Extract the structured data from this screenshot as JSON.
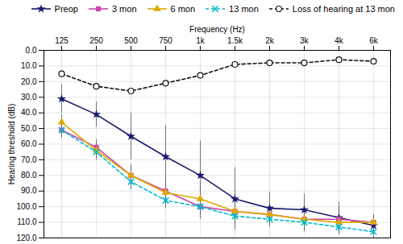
{
  "chart_data": {
    "type": "line",
    "xlabel": "Frequency (Hz)",
    "ylabel": "Hearing threshold (dB)",
    "categories": [
      "125",
      "250",
      "500",
      "750",
      "1k",
      "1.5k",
      "2k",
      "3k",
      "4k",
      "6k"
    ],
    "series": [
      {
        "name": "Preop",
        "color": "#1a1a6e",
        "marker": "star",
        "line_style": "solid",
        "values": [
          31,
          41,
          55,
          68,
          80,
          95,
          101,
          102,
          107,
          112
        ],
        "errors": [
          9,
          8,
          15,
          20,
          22,
          20,
          10,
          10,
          10,
          5
        ]
      },
      {
        "name": "3 mon",
        "color": "#cc44aa",
        "marker": "square",
        "line_style": "solid",
        "values": [
          51,
          62,
          80,
          90,
          100,
          103,
          105,
          108,
          108,
          110
        ],
        "errors": [
          5,
          5,
          7,
          8,
          8,
          8,
          6,
          8,
          8,
          5
        ]
      },
      {
        "name": "6 mon",
        "color": "#ddaa00",
        "marker": "triangle",
        "line_style": "solid",
        "values": [
          46,
          64,
          80,
          91,
          95,
          103,
          105,
          108,
          110,
          110
        ],
        "errors": [
          5,
          5,
          6,
          5,
          8,
          6,
          5,
          5,
          5,
          4
        ]
      },
      {
        "name": "13 mon",
        "color": "#00bbcc",
        "marker": "x",
        "line_style": "dashed",
        "values": [
          51,
          65,
          84,
          96,
          100,
          106,
          108,
          110,
          113,
          116
        ],
        "errors": [
          5,
          5,
          5,
          5,
          5,
          5,
          5,
          5,
          5,
          4
        ]
      },
      {
        "name": "Loss of hearing at 13 mon",
        "color": "#111111",
        "marker": "circle",
        "line_style": "dashed",
        "values": [
          15,
          23,
          26,
          21,
          16,
          9,
          8,
          8,
          6,
          7
        ]
      }
    ],
    "ylim": [
      120,
      0
    ],
    "yticks": [
      {
        "value": 0,
        "label": "0.0"
      },
      {
        "value": 10,
        "label": "10.0"
      },
      {
        "value": 20,
        "label": "20.0"
      },
      {
        "value": 30,
        "label": "30.0"
      },
      {
        "value": 40,
        "label": "40.0"
      },
      {
        "value": 50,
        "label": "50.0"
      },
      {
        "value": 60,
        "label": "60.0"
      },
      {
        "value": 70,
        "label": "70.0"
      },
      {
        "value": 80,
        "label": "80.0"
      },
      {
        "value": 90,
        "label": "90.0"
      },
      {
        "value": 100,
        "label": "100.0"
      },
      {
        "value": 110,
        "label": "110.0"
      },
      {
        "value": 120,
        "label": "120.0"
      }
    ],
    "grid": true,
    "legend": "upper right"
  }
}
